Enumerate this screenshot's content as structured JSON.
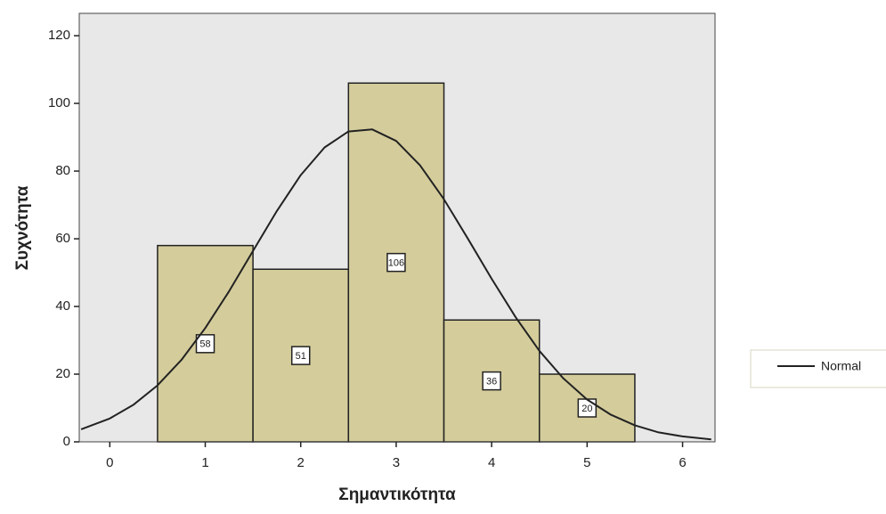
{
  "chart_data": {
    "type": "histogram",
    "xlabel": "Σημαντικότητα",
    "ylabel": "Συχνότητα",
    "bins": [
      0.5,
      1.5,
      2.5,
      3.5,
      4.5,
      5.5
    ],
    "values": [
      58,
      51,
      106,
      36,
      20
    ],
    "color": "#d4cc9b",
    "xlim": [
      -0.32,
      6.34
    ],
    "ylim": [
      0,
      126.6
    ],
    "xticks": [
      0,
      1,
      2,
      3,
      4,
      5,
      6
    ],
    "yticks": [
      0,
      20,
      40,
      60,
      80,
      100,
      120
    ],
    "curve": {
      "name": "Normal",
      "color": "#222222",
      "x": [
        -0.3,
        0,
        0.25,
        0.5,
        0.75,
        1,
        1.25,
        1.5,
        1.75,
        2,
        2.25,
        2.5,
        2.75,
        3,
        3.25,
        3.5,
        3.75,
        4,
        4.25,
        4.5,
        4.75,
        5,
        5.25,
        5.5,
        5.75,
        6,
        6.3
      ],
      "values": [
        3.7,
        6.9,
        11.0,
        16.7,
        24.2,
        33.6,
        44.5,
        56.4,
        68.2,
        78.8,
        87.0,
        91.7,
        92.3,
        88.9,
        81.7,
        71.7,
        60.1,
        48.2,
        36.9,
        26.9,
        18.8,
        12.5,
        8.0,
        4.9,
        2.8,
        1.6,
        0.7
      ]
    },
    "legend": "right"
  }
}
